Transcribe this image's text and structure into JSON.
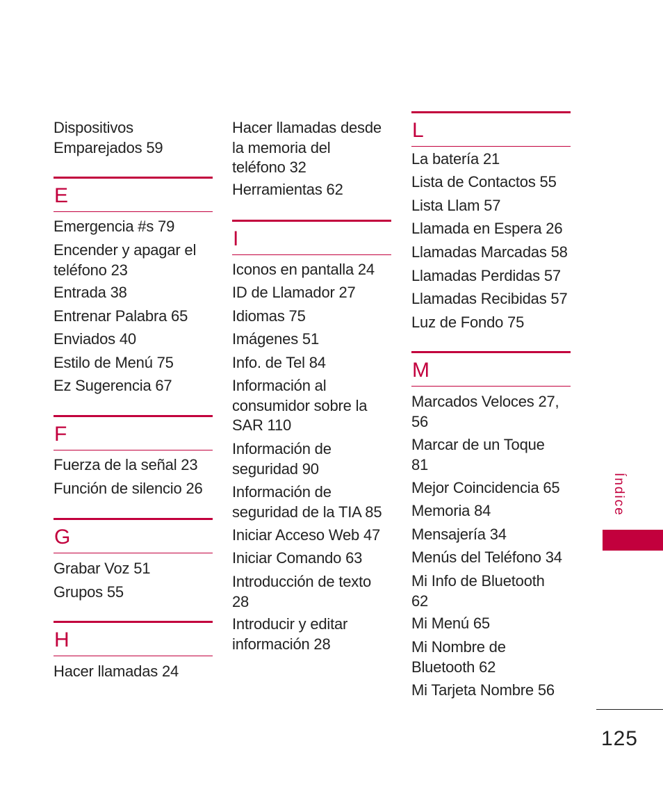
{
  "colors": {
    "accent": "#c2003d",
    "text": "#222222"
  },
  "columns": [
    {
      "items": [
        {
          "type": "entry",
          "text": "Dispositivos\nEmparejados 59"
        },
        {
          "type": "heading",
          "letter": "E"
        },
        {
          "type": "entry",
          "text": "Emergencia #s 79"
        },
        {
          "type": "entry",
          "text": "Encender y apagar el\nteléfono 23"
        },
        {
          "type": "entry",
          "text": "Entrada 38"
        },
        {
          "type": "entry",
          "text": "Entrenar Palabra 65"
        },
        {
          "type": "entry",
          "text": "Enviados 40"
        },
        {
          "type": "entry",
          "text": "Estilo de Menú 75"
        },
        {
          "type": "entry",
          "text": "Ez Sugerencia 67"
        },
        {
          "type": "heading",
          "letter": "F"
        },
        {
          "type": "entry",
          "text": "Fuerza de la señal 23"
        },
        {
          "type": "entry",
          "text": "Función de silencio 26"
        },
        {
          "type": "heading",
          "letter": "G"
        },
        {
          "type": "entry",
          "text": "Grabar Voz 51"
        },
        {
          "type": "entry",
          "text": "Grupos 55"
        },
        {
          "type": "heading",
          "letter": "H"
        },
        {
          "type": "entry",
          "text": "Hacer llamadas 24"
        }
      ]
    },
    {
      "items": [
        {
          "type": "entry",
          "text": "Hacer llamadas desde\nla memoria del\nteléfono 32"
        },
        {
          "type": "entry",
          "text": "Herramientas 62"
        },
        {
          "type": "heading",
          "letter": "I"
        },
        {
          "type": "entry",
          "text": "Iconos en pantalla 24"
        },
        {
          "type": "entry",
          "text": "ID de Llamador 27"
        },
        {
          "type": "entry",
          "text": "Idiomas 75"
        },
        {
          "type": "entry",
          "text": "Imágenes 51"
        },
        {
          "type": "entry",
          "text": "Info. de Tel 84"
        },
        {
          "type": "entry",
          "text": "Información al\nconsumidor sobre la\nSAR 110"
        },
        {
          "type": "entry",
          "text": "Información de\nseguridad 90"
        },
        {
          "type": "entry",
          "text": "Información de\nseguridad de la TIA 85"
        },
        {
          "type": "entry",
          "text": "Iniciar Acceso Web 47"
        },
        {
          "type": "entry",
          "text": "Iniciar Comando 63"
        },
        {
          "type": "entry",
          "text": "Introducción de texto\n28"
        },
        {
          "type": "entry",
          "text": "Introducir y editar\ninformación 28"
        }
      ]
    },
    {
      "items": [
        {
          "type": "heading",
          "letter": "L"
        },
        {
          "type": "entry",
          "text": "La batería 21"
        },
        {
          "type": "entry",
          "text": "Lista de Contactos 55"
        },
        {
          "type": "entry",
          "text": "Lista Llam 57"
        },
        {
          "type": "entry",
          "text": "Llamada en Espera 26"
        },
        {
          "type": "entry",
          "text": "Llamadas Marcadas 58"
        },
        {
          "type": "entry",
          "text": "Llamadas Perdidas 57"
        },
        {
          "type": "entry",
          "text": "Llamadas Recibidas 57"
        },
        {
          "type": "entry",
          "text": "Luz de Fondo 75"
        },
        {
          "type": "heading",
          "letter": "M"
        },
        {
          "type": "entry",
          "text": "Marcados Veloces 27,\n56"
        },
        {
          "type": "entry",
          "text": "Marcar de un Toque\n81"
        },
        {
          "type": "entry",
          "text": "Mejor Coincidencia 65"
        },
        {
          "type": "entry",
          "text": "Memoria 84"
        },
        {
          "type": "entry",
          "text": "Mensajería 34"
        },
        {
          "type": "entry",
          "text": "Menús del Teléfono 34"
        },
        {
          "type": "entry",
          "text": "Mi Info de Bluetooth\n62"
        },
        {
          "type": "entry",
          "text": "Mi Menú 65"
        },
        {
          "type": "entry",
          "text": "Mi Nombre de\nBluetooth 62"
        },
        {
          "type": "entry",
          "text": "Mi Tarjeta Nombre 56"
        }
      ]
    }
  ],
  "side_tab": {
    "label": "Índice"
  },
  "page_number": "125"
}
